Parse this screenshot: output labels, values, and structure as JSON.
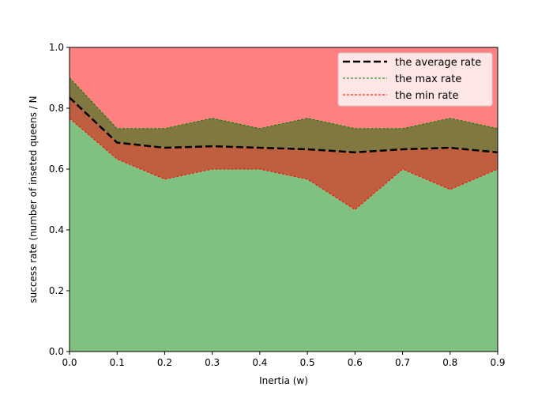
{
  "chart_data": {
    "type": "area",
    "title": "",
    "xlabel": "Inertia (w)",
    "ylabel": "success rate (number of inseted queens / N",
    "xlim": [
      0.0,
      0.9
    ],
    "ylim": [
      0.0,
      1.0
    ],
    "xticks": [
      "0.0",
      "0.1",
      "0.2",
      "0.3",
      "0.4",
      "0.5",
      "0.6",
      "0.7",
      "0.8",
      "0.9"
    ],
    "yticks": [
      "0.0",
      "0.2",
      "0.4",
      "0.6",
      "0.8",
      "1.0"
    ],
    "x": [
      0.0,
      0.1,
      0.2,
      0.3,
      0.4,
      0.5,
      0.6,
      0.7,
      0.8,
      0.9
    ],
    "series": [
      {
        "name": "the average rate",
        "values": [
          0.835,
          0.687,
          0.67,
          0.675,
          0.67,
          0.665,
          0.655,
          0.665,
          0.67,
          0.655
        ],
        "color": "#000000",
        "style": "dashed-thick"
      },
      {
        "name": "the max rate",
        "values": [
          0.9,
          0.733,
          0.733,
          0.767,
          0.733,
          0.767,
          0.733,
          0.733,
          0.767,
          0.733
        ],
        "color": "#008000",
        "style": "dashed"
      },
      {
        "name": "the min rate",
        "values": [
          0.767,
          0.633,
          0.567,
          0.6,
          0.6,
          0.567,
          0.467,
          0.6,
          0.533,
          0.6
        ],
        "color": "#ff0000",
        "style": "dashed"
      }
    ],
    "fills": {
      "below_min": "#80c080",
      "min_to_avg": "#c05e40",
      "avg_to_max": "#807840",
      "above_max": "#ff8080"
    },
    "legend": "top-right",
    "grid": false
  }
}
